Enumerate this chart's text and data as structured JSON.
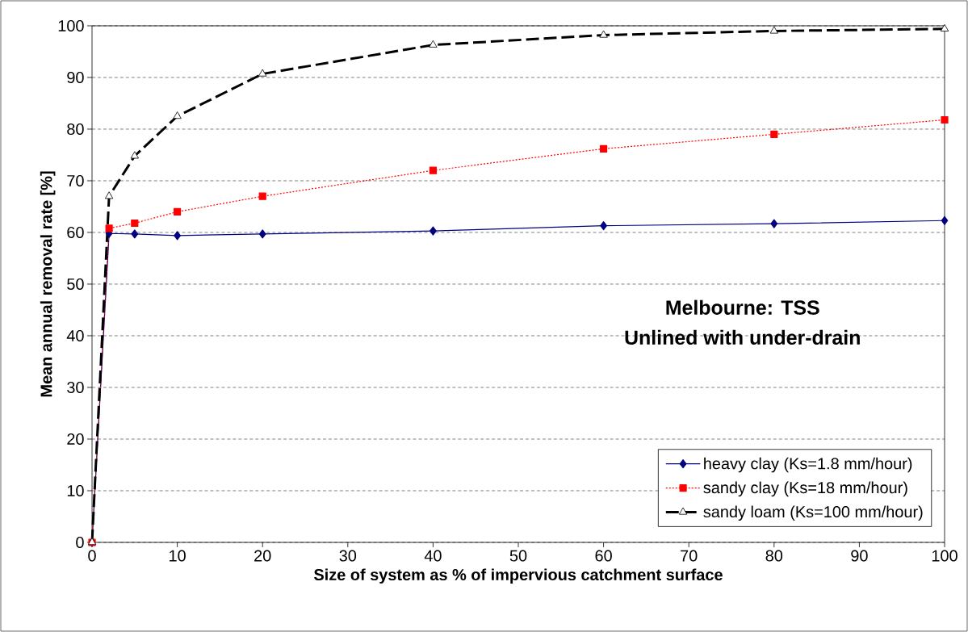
{
  "chart_data": {
    "type": "line",
    "xlabel": "Size of system as % of impervious catchment surface",
    "ylabel": "Mean annual removal rate [%]",
    "x": [
      0,
      2,
      5,
      10,
      20,
      40,
      60,
      80,
      100
    ],
    "series": [
      {
        "name": "heavy clay (Ks=1.8 mm/hour)",
        "color": "#000080",
        "marker": "diamond",
        "line_style": "solid",
        "values": [
          0,
          59.8,
          59.7,
          59.4,
          59.7,
          60.3,
          61.3,
          61.7,
          62.3
        ]
      },
      {
        "name": "sandy clay (Ks=18 mm/hour)",
        "color": "#ff0000",
        "marker": "square",
        "line_style": "dotted",
        "values": [
          0,
          60.8,
          61.8,
          64,
          67,
          72,
          76.2,
          79,
          81.8
        ]
      },
      {
        "name": "sandy loam (Ks=100 mm/hour)",
        "color": "#000000",
        "marker": "triangle",
        "line_style": "dashed",
        "values": [
          0,
          67,
          74.8,
          82.5,
          90.7,
          96.3,
          98.2,
          99,
          99.4
        ]
      }
    ],
    "xlim": [
      0,
      100
    ],
    "ylim": [
      0,
      100
    ],
    "xticks": [
      0,
      10,
      20,
      30,
      40,
      50,
      60,
      70,
      80,
      90,
      100
    ],
    "yticks": [
      0,
      10,
      20,
      30,
      40,
      50,
      60,
      70,
      80,
      90,
      100
    ],
    "grid": "y",
    "legend": "bottom right",
    "annotations": [
      "Melbourne: TSS",
      "Unlined with under-drain"
    ]
  }
}
